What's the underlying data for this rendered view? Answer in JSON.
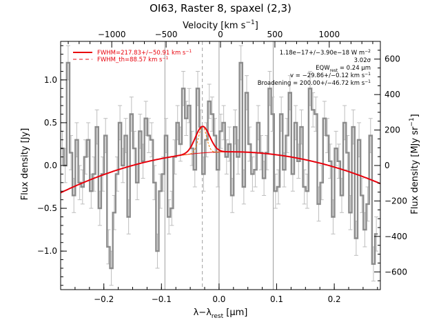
{
  "chart_data": {
    "type": "line",
    "title": "OI63, Raster 8, spaxel (2,3)",
    "xlabel_main": "λ−λ",
    "xlabel_sub": "rest",
    "xlabel_unit": " [μm]",
    "ylabel_left": "Flux density [Jy]",
    "ylabel_right": "Flux density [MJy sr",
    "ylabel_right_sup": "−1",
    "ylabel_right_end": "]",
    "xlabel_top": "Velocity [km s",
    "xlabel_top_sup": "−1",
    "xlabel_top_end": "]",
    "xlim": [
      -0.275,
      0.28
    ],
    "ylim_left": [
      -1.45,
      1.45
    ],
    "ylim_right": [
      -700,
      700
    ],
    "top_lim": [
      -1470,
      1470
    ],
    "xticks": [
      -0.2,
      -0.1,
      0.0,
      0.1,
      0.2
    ],
    "xtick_labels": [
      "−0.2",
      "−0.1",
      "0.0",
      "0.1",
      "0.2"
    ],
    "yticks_left": [
      -1.0,
      -0.5,
      0.0,
      0.5,
      1.0
    ],
    "ytick_labels_left": [
      "−1.0",
      "−0.5",
      "0.0",
      "0.5",
      "1.0"
    ],
    "yticks_right": [
      -600,
      -400,
      -200,
      0,
      200,
      400,
      600
    ],
    "ytick_labels_right": [
      "−600",
      "−400",
      "−200",
      "0",
      "200",
      "400",
      "600"
    ],
    "top_ticks": [
      -1000,
      -500,
      0,
      500,
      1000
    ],
    "top_tick_labels": [
      "−1000",
      "−500",
      "0",
      "500",
      "1000"
    ],
    "vlines_solid": [
      -0.094,
      0.0,
      0.094
    ],
    "vline_dashed": -0.029,
    "legend": [
      {
        "label": "FWHM=217.83+/−50.91 km s",
        "sup": "−1",
        "style": "solid",
        "color": "#e8000b"
      },
      {
        "label": "FWHM_th=88.57 km s",
        "sup": "−1",
        "style": "dashed",
        "color": "#e8000b"
      }
    ],
    "annotations": [
      {
        "text": "1.18e−17+/−3.90e−18 W m",
        "sup": "−2"
      },
      {
        "text": "3.02σ"
      },
      {
        "text": "EQW",
        "sub": "rest",
        "tail": " = 0.24 μm"
      },
      {
        "text": "v = −29.86+/−0.12 km s",
        "sup": "−1"
      },
      {
        "text": "Broadening = 200.00+/−46.72 km s",
        "sup": "−1"
      }
    ],
    "colors": {
      "data": "#8c8c8c",
      "errorbar": "#bdbdbd",
      "model": "#e8000b",
      "component": "#f07800",
      "vline": "#9e9e9e"
    },
    "model": {
      "baseline_peak": 0.16,
      "baseline_center": 0.02,
      "baseline_curvature": 5.5,
      "gauss_amp": 0.31,
      "gauss_center": -0.0287,
      "gauss_sigma": 0.0125
    },
    "series": [
      {
        "type": "steps",
        "x": [
          -0.272,
          -0.267,
          -0.262,
          -0.257,
          -0.252,
          -0.247,
          -0.242,
          -0.237,
          -0.232,
          -0.227,
          -0.222,
          -0.217,
          -0.212,
          -0.207,
          -0.202,
          -0.197,
          -0.192,
          -0.187,
          -0.182,
          -0.177,
          -0.172,
          -0.167,
          -0.162,
          -0.157,
          -0.152,
          -0.147,
          -0.142,
          -0.137,
          -0.132,
          -0.127,
          -0.122,
          -0.117,
          -0.112,
          -0.107,
          -0.102,
          -0.097,
          -0.092,
          -0.087,
          -0.082,
          -0.077,
          -0.072,
          -0.067,
          -0.062,
          -0.057,
          -0.052,
          -0.047,
          -0.042,
          -0.037,
          -0.032,
          -0.027,
          -0.022,
          -0.017,
          -0.012,
          -0.007,
          -0.002,
          0.003,
          0.008,
          0.013,
          0.018,
          0.023,
          0.028,
          0.033,
          0.038,
          0.043,
          0.048,
          0.053,
          0.058,
          0.063,
          0.068,
          0.073,
          0.078,
          0.083,
          0.088,
          0.093,
          0.098,
          0.103,
          0.108,
          0.113,
          0.118,
          0.123,
          0.128,
          0.133,
          0.138,
          0.143,
          0.148,
          0.153,
          0.158,
          0.163,
          0.168,
          0.173,
          0.178,
          0.183,
          0.188,
          0.193,
          0.198,
          0.203,
          0.208,
          0.213,
          0.218,
          0.223,
          0.228,
          0.233,
          0.238,
          0.243,
          0.248,
          0.253,
          0.258,
          0.263,
          0.268,
          0.273
        ],
        "y": [
          0.2,
          0.0,
          1.2,
          0.15,
          -0.35,
          0.3,
          -0.2,
          -0.25,
          0.1,
          0.3,
          -0.3,
          -0.1,
          0.45,
          -0.5,
          -0.1,
          0.35,
          -0.95,
          -1.2,
          -0.55,
          -0.1,
          0.5,
          0.0,
          0.35,
          -0.6,
          0.6,
          0.2,
          -0.2,
          0.4,
          0.05,
          0.55,
          0.35,
          0.3,
          -0.2,
          -1.0,
          -0.3,
          -0.1,
          0.35,
          -0.6,
          -0.5,
          0.1,
          0.5,
          0.25,
          0.9,
          0.55,
          0.7,
          0.2,
          -0.05,
          0.9,
          0.45,
          -0.1,
          0.3,
          0.75,
          0.6,
          0.35,
          -0.05,
          0.4,
          0.5,
          0.1,
          0.25,
          -0.35,
          0.45,
          0.1,
          1.2,
          -0.25,
          0.85,
          0.25,
          -0.1,
          -0.05,
          0.5,
          0.15,
          -0.15,
          0.15,
          0.9,
          0.6,
          -0.3,
          -0.25,
          0.6,
          -0.05,
          0.35,
          0.85,
          -0.1,
          0.5,
          0.05,
          0.45,
          -0.25,
          -0.3,
          0.9,
          0.65,
          0.6,
          -0.45,
          -0.2,
          0.55,
          0.35,
          0.05,
          -0.6,
          0.2,
          0.05,
          -0.35,
          0.5,
          0.15,
          -0.55,
          0.45,
          -0.85,
          0.3,
          -0.35,
          -0.75,
          -0.45,
          0.35,
          -1.15,
          -0.8
        ],
        "err": 0.2
      }
    ]
  }
}
